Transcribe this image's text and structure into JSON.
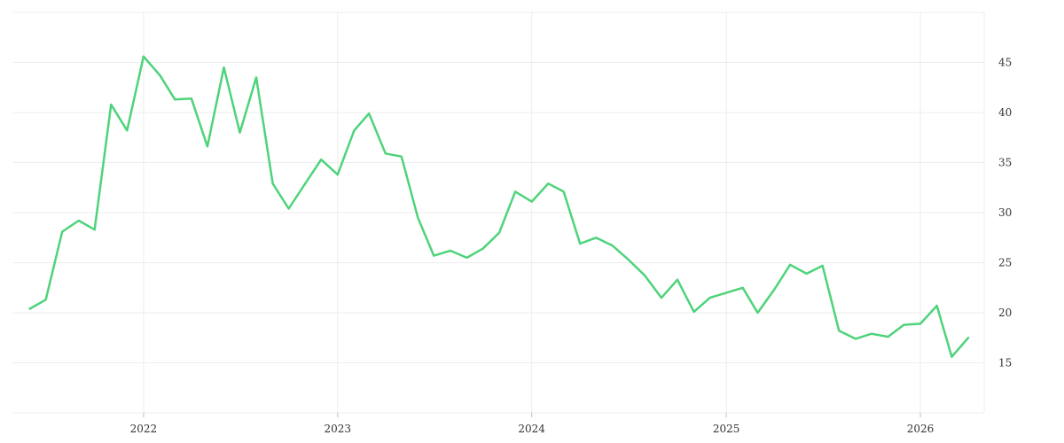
{
  "chart_data": {
    "type": "line",
    "title": "",
    "xlabel": "",
    "ylabel": "",
    "line_color": "#4ed37a",
    "grid": true,
    "legend": "none",
    "y_axis_position": "right",
    "xlim": [
      "2021-05-01",
      "2026-05-01"
    ],
    "ylim": [
      10,
      50
    ],
    "x_ticks": [
      {
        "date": "2022-01-01",
        "label": "2022"
      },
      {
        "date": "2023-01-01",
        "label": "2023"
      },
      {
        "date": "2024-01-01",
        "label": "2024"
      },
      {
        "date": "2025-01-01",
        "label": "2025"
      },
      {
        "date": "2026-01-01",
        "label": "2026"
      }
    ],
    "y_ticks": [
      {
        "value": 15,
        "label": "15"
      },
      {
        "value": 20,
        "label": "20"
      },
      {
        "value": 25,
        "label": "25"
      },
      {
        "value": 30,
        "label": "30"
      },
      {
        "value": 35,
        "label": "35"
      },
      {
        "value": 40,
        "label": "40"
      },
      {
        "value": 45,
        "label": "45"
      }
    ],
    "series": [
      {
        "x": [
          "2021-06-01",
          "2021-07-01",
          "2021-08-01",
          "2021-09-01",
          "2021-10-01",
          "2021-11-01",
          "2021-12-01",
          "2022-01-01",
          "2022-02-01",
          "2022-03-01",
          "2022-04-01",
          "2022-05-01",
          "2022-06-01",
          "2022-07-01",
          "2022-08-01",
          "2022-09-01",
          "2022-10-01",
          "2022-11-01",
          "2022-12-01",
          "2023-01-01",
          "2023-02-01",
          "2023-03-01",
          "2023-04-01",
          "2023-05-01",
          "2023-06-01",
          "2023-07-01",
          "2023-08-01",
          "2023-09-01",
          "2023-10-01",
          "2023-11-01",
          "2023-12-01",
          "2024-01-01",
          "2024-02-01",
          "2024-03-01",
          "2024-04-01",
          "2024-05-01",
          "2024-06-01",
          "2024-07-01",
          "2024-08-01",
          "2024-09-01",
          "2024-10-01",
          "2024-11-01",
          "2024-12-01",
          "2025-01-01",
          "2025-02-01",
          "2025-03-01",
          "2025-04-01",
          "2025-05-01",
          "2025-06-01",
          "2025-07-01",
          "2025-08-01",
          "2025-09-01",
          "2025-10-01",
          "2025-11-01",
          "2025-12-01",
          "2026-01-01",
          "2026-02-01",
          "2026-03-01",
          "2026-04-01"
        ],
        "y": [
          20.4,
          21.3,
          28.1,
          29.2,
          28.3,
          40.8,
          38.2,
          45.6,
          43.7,
          41.3,
          41.4,
          36.6,
          44.5,
          38.0,
          43.5,
          32.9,
          30.4,
          32.9,
          35.3,
          33.8,
          38.2,
          39.9,
          35.9,
          35.6,
          29.5,
          25.7,
          26.2,
          25.5,
          26.4,
          28.0,
          32.1,
          31.1,
          32.9,
          32.1,
          26.9,
          27.5,
          26.7,
          25.3,
          23.7,
          21.5,
          23.3,
          20.1,
          21.5,
          22.0,
          22.5,
          20.0,
          22.3,
          24.8,
          23.9,
          24.7,
          18.2,
          17.4,
          17.9,
          17.6,
          18.8,
          18.9,
          20.7,
          15.6,
          17.5
        ]
      }
    ]
  }
}
